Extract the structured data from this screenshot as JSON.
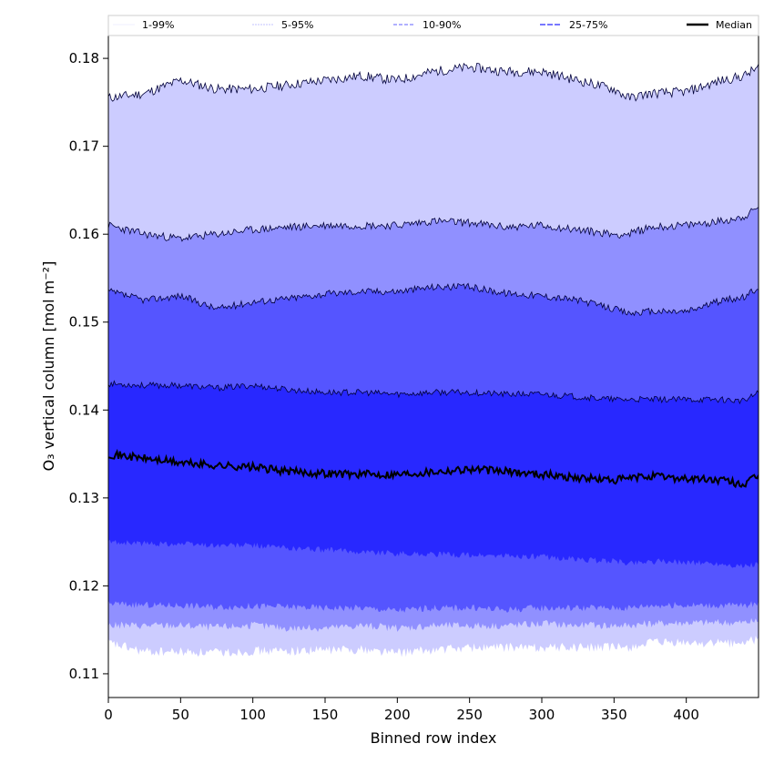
{
  "chart_data": {
    "type": "area",
    "xlabel": "Binned row index",
    "ylabel": "O₃ vertical column [mol m⁻²]",
    "xlim": [
      0,
      450
    ],
    "ylim": [
      0.1073,
      0.1826
    ],
    "x_ticks": [
      0,
      50,
      100,
      150,
      200,
      250,
      300,
      350,
      400
    ],
    "y_ticks": [
      0.11,
      0.12,
      0.13,
      0.14,
      0.15,
      0.16,
      0.17,
      0.18
    ],
    "grid": false,
    "legend_position": "top (full width, above plot)",
    "x_anchor": [
      0,
      25,
      50,
      75,
      100,
      125,
      150,
      175,
      200,
      225,
      250,
      275,
      300,
      325,
      350,
      360,
      375,
      400,
      425,
      440,
      450
    ],
    "series": [
      {
        "name": "1-99%",
        "color": "#ccccff",
        "lower": [
          0.1135,
          0.1125,
          0.1125,
          0.1124,
          0.1126,
          0.1126,
          0.1127,
          0.1128,
          0.1124,
          0.1127,
          0.113,
          0.113,
          0.113,
          0.113,
          0.113,
          0.113,
          0.1135,
          0.1135,
          0.1135,
          0.1135,
          0.114
        ],
        "upper": [
          0.1755,
          0.176,
          0.1775,
          0.1765,
          0.1765,
          0.177,
          0.1775,
          0.178,
          0.1775,
          0.1785,
          0.179,
          0.1785,
          0.1785,
          0.1775,
          0.1765,
          0.1755,
          0.176,
          0.1762,
          0.1775,
          0.178,
          0.179
        ]
      },
      {
        "name": "5-95%",
        "color": "#9090ff",
        "lower": [
          0.1155,
          0.1155,
          0.1155,
          0.1153,
          0.1155,
          0.1152,
          0.1152,
          0.1155,
          0.1152,
          0.1155,
          0.1155,
          0.1155,
          0.1157,
          0.1155,
          0.1155,
          0.1155,
          0.1157,
          0.1158,
          0.1158,
          0.1158,
          0.116
        ],
        "upper": [
          0.161,
          0.16,
          0.1595,
          0.16,
          0.1605,
          0.1608,
          0.161,
          0.161,
          0.161,
          0.1615,
          0.1613,
          0.1608,
          0.161,
          0.1605,
          0.16,
          0.16,
          0.1608,
          0.161,
          0.1615,
          0.162,
          0.163
        ]
      },
      {
        "name": "10-90%",
        "color": "#5555ff",
        "lower": [
          0.118,
          0.1178,
          0.1178,
          0.1176,
          0.1177,
          0.1176,
          0.1175,
          0.1175,
          0.1172,
          0.1175,
          0.1175,
          0.1173,
          0.1175,
          0.1175,
          0.1175,
          0.1175,
          0.1178,
          0.1178,
          0.1178,
          0.1178,
          0.118
        ],
        "upper": [
          0.1535,
          0.1525,
          0.153,
          0.1515,
          0.1523,
          0.1527,
          0.1532,
          0.1535,
          0.1535,
          0.154,
          0.154,
          0.1533,
          0.153,
          0.1525,
          0.1515,
          0.151,
          0.1512,
          0.1512,
          0.1525,
          0.1528,
          0.154
        ]
      },
      {
        "name": "25-75%",
        "color": "#2828ff",
        "lower": [
          0.125,
          0.1248,
          0.1248,
          0.1246,
          0.1246,
          0.1243,
          0.1241,
          0.1239,
          0.1237,
          0.1236,
          0.1235,
          0.1234,
          0.1233,
          0.123,
          0.1228,
          0.1226,
          0.1228,
          0.1227,
          0.1225,
          0.1222,
          0.1225
        ]
      },
      {
        "name": "Median",
        "color": "#000000",
        "values": [
          0.135,
          0.1345,
          0.134,
          0.1337,
          0.1335,
          0.133,
          0.1328,
          0.1327,
          0.1327,
          0.133,
          0.1333,
          0.133,
          0.1327,
          0.1323,
          0.132,
          0.1322,
          0.1325,
          0.1322,
          0.132,
          0.1315,
          0.1325
        ]
      }
    ],
    "quartile_upper": [
      0.143,
      0.1428,
      0.1428,
      0.1425,
      0.1428,
      0.1423,
      0.142,
      0.142,
      0.1418,
      0.142,
      0.142,
      0.1418,
      0.1418,
      0.1415,
      0.1412,
      0.1412,
      0.1412,
      0.1412,
      0.1412,
      0.141,
      0.142
    ]
  }
}
